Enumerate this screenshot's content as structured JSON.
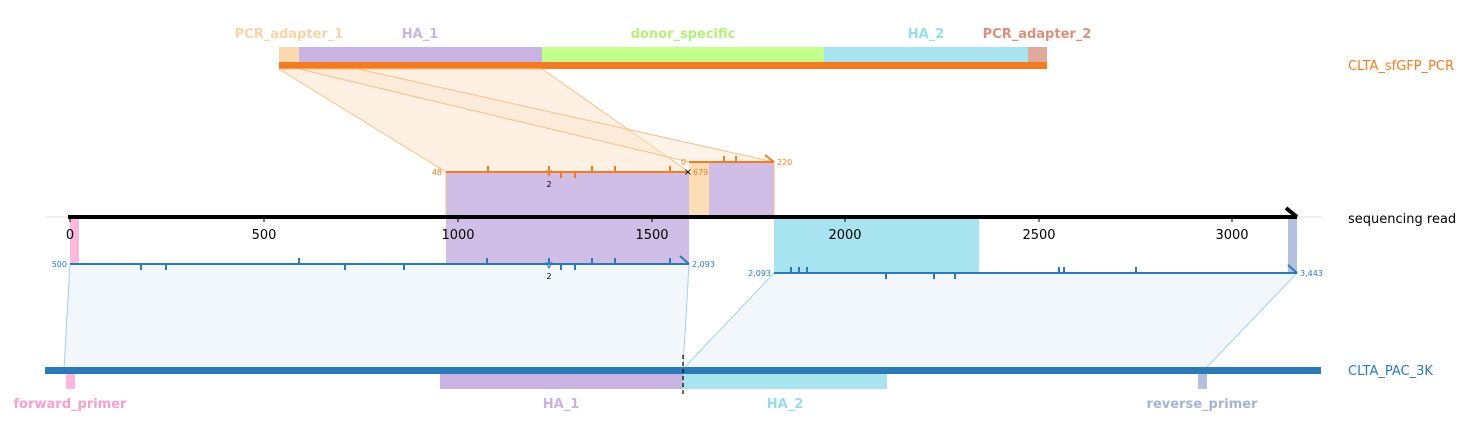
{
  "colors": {
    "orange": "#f47c20",
    "blue": "#2a7ab8",
    "purple": "#c9b3e3",
    "light_blue": "#a8e4f0",
    "pink": "#fdb8dc",
    "peach": "#fbd9b0",
    "green": "#c2ff8c",
    "salmon": "#e0aa9a",
    "slate": "#b5c0de"
  },
  "tracks": {
    "top": "CLTA_sfGFP_PCR",
    "read": "sequencing read",
    "bottom": "CLTA_PAC_3K"
  },
  "top_features": [
    {
      "id": "pcr-adapter-1",
      "label": "PCR_adapter_1",
      "color": "#fbd9b0",
      "text_color": "#f8d4a8"
    },
    {
      "id": "ha-1",
      "label": "HA_1",
      "color": "#c9b3e3",
      "text_color": "#c9b3e3"
    },
    {
      "id": "donor-specific",
      "label": "donor_specific",
      "color": "#c2ff8c",
      "text_color": "#b4f07a"
    },
    {
      "id": "ha-2",
      "label": "HA_2",
      "color": "#a8e4f0",
      "text_color": "#96dcec"
    },
    {
      "id": "pcr-adapter-2",
      "label": "PCR_adapter_2",
      "color": "#e0aa9a",
      "text_color": "#d9907c"
    }
  ],
  "bottom_features": [
    {
      "id": "forward-primer",
      "label": "forward_primer",
      "color": "#fdb8dc",
      "text_color": "#f79fd0"
    },
    {
      "id": "ha-1",
      "label": "HA_1",
      "color": "#c9b3e3",
      "text_color": "#c9b3e3"
    },
    {
      "id": "ha-2",
      "label": "HA_2",
      "color": "#a8e4f0",
      "text_color": "#96dcec"
    },
    {
      "id": "reverse-primer",
      "label": "reverse_primer",
      "color": "#b5c0de",
      "text_color": "#a7b3d8"
    }
  ],
  "read_axis": {
    "ticks": [
      "0",
      "500",
      "1000",
      "1500",
      "2000",
      "2500",
      "3000"
    ]
  },
  "alignments": {
    "top_main": {
      "start_label": "48",
      "end_label": "679",
      "indel_label": "2"
    },
    "top_short": {
      "start_label": "0",
      "end_label": "220"
    },
    "bottom_left": {
      "start_label": "500",
      "end_label": "2,093",
      "indel_label": "2"
    },
    "bottom_right": {
      "start_label": "2,093",
      "end_label": "3,443"
    }
  }
}
